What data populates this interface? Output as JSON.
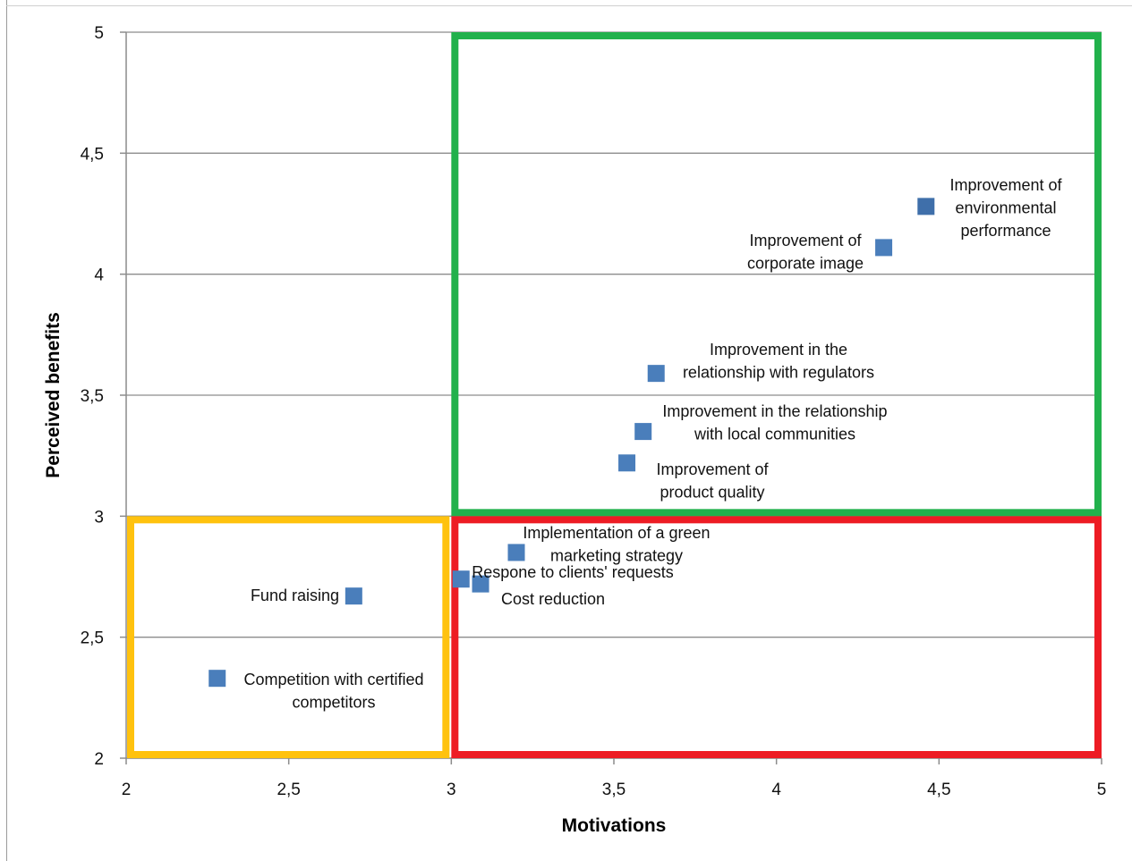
{
  "chart_data": {
    "type": "scatter",
    "xlabel": "Motivations",
    "ylabel": "Perceived benefits",
    "xlim": [
      2,
      5
    ],
    "ylim": [
      2,
      5
    ],
    "x_ticks": [
      "2",
      "2,5",
      "3",
      "3,5",
      "4",
      "4,5",
      "5"
    ],
    "y_ticks": [
      "2",
      "2,5",
      "3",
      "3,5",
      "4",
      "4,5",
      "5"
    ],
    "grid": "horizontal",
    "marker_color": "#4a7ebb",
    "points": [
      {
        "label": [
          "Improvement of",
          "environmental",
          "performance"
        ],
        "x": 4.46,
        "y": 4.28,
        "color": "#3f6faa"
      },
      {
        "label": [
          "Improvement of",
          "corporate image"
        ],
        "x": 4.33,
        "y": 4.11
      },
      {
        "label": [
          "Improvement in the",
          "relationship with regulators"
        ],
        "x": 3.63,
        "y": 3.59
      },
      {
        "label": [
          "Improvement in the relationship",
          "with local communities"
        ],
        "x": 3.59,
        "y": 3.35
      },
      {
        "label": [
          "Improvement of",
          "product quality"
        ],
        "x": 3.54,
        "y": 3.22
      },
      {
        "label": [
          "Implementation of a green",
          "marketing strategy"
        ],
        "x": 3.2,
        "y": 2.85
      },
      {
        "label": [
          "Respone to clients' requests"
        ],
        "x": 3.03,
        "y": 2.74
      },
      {
        "label": [
          "Cost reduction"
        ],
        "x": 3.09,
        "y": 2.72
      },
      {
        "label": [
          "Fund raising"
        ],
        "x": 2.7,
        "y": 2.67
      },
      {
        "label": [
          "Competition with certified",
          "competitors"
        ],
        "x": 2.28,
        "y": 2.33
      }
    ],
    "regions": [
      {
        "color": "#22b14c",
        "x": [
          3,
          5
        ],
        "y": [
          3,
          5
        ]
      },
      {
        "color": "#ed1c24",
        "x": [
          3,
          5
        ],
        "y": [
          2,
          3
        ]
      },
      {
        "color": "#ffc20e",
        "x": [
          2,
          3
        ],
        "y": [
          2,
          3
        ]
      }
    ]
  }
}
